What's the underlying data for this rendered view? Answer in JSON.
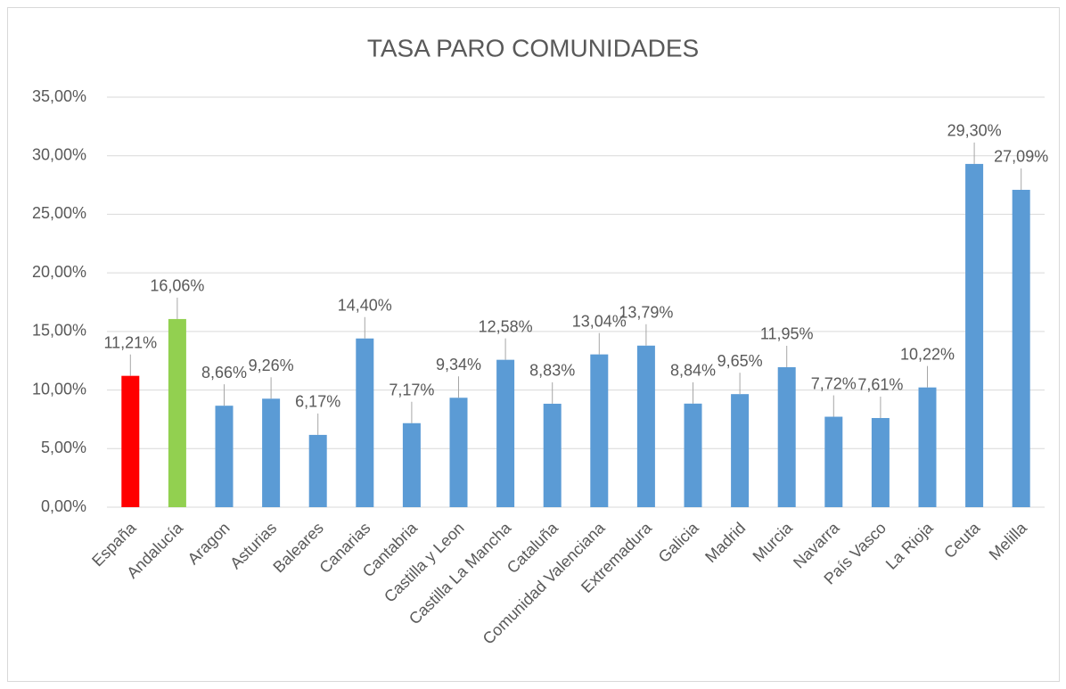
{
  "chart_data": {
    "type": "bar",
    "title": "TASA PARO COMUNIDADES",
    "categories": [
      "España",
      "Andalucía",
      "Aragon",
      "Asturias",
      "Baleares",
      "Canarias",
      "Cantabria",
      "Castilla y Leon",
      "Castilla La Mancha",
      "Cataluña",
      "Comunidad Valenciana",
      "Extremadura",
      "Galicia",
      "Madrid",
      "Murcia",
      "Navarra",
      "País Vasco",
      "La Rioja",
      "Ceuta",
      "Melilla"
    ],
    "values": [
      11.21,
      16.06,
      8.66,
      9.26,
      6.17,
      14.4,
      7.17,
      9.34,
      12.58,
      8.83,
      13.04,
      13.79,
      8.84,
      9.65,
      11.95,
      7.72,
      7.61,
      10.22,
      29.3,
      27.09
    ],
    "value_labels": [
      "11,21%",
      "16,06%",
      "8,66%",
      "9,26%",
      "6,17%",
      "14,40%",
      "7,17%",
      "9,34%",
      "12,58%",
      "8,83%",
      "13,04%",
      "13,79%",
      "8,84%",
      "9,65%",
      "11,95%",
      "7,72%",
      "7,61%",
      "10,22%",
      "29,30%",
      "27,09%"
    ],
    "colors": [
      "#ff0000",
      "#92d050",
      "#5b9bd5",
      "#5b9bd5",
      "#5b9bd5",
      "#5b9bd5",
      "#5b9bd5",
      "#5b9bd5",
      "#5b9bd5",
      "#5b9bd5",
      "#5b9bd5",
      "#5b9bd5",
      "#5b9bd5",
      "#5b9bd5",
      "#5b9bd5",
      "#5b9bd5",
      "#5b9bd5",
      "#5b9bd5",
      "#5b9bd5",
      "#5b9bd5"
    ],
    "ylim": [
      0,
      35
    ],
    "yticks": [
      {
        "value": 0,
        "label": "0,00%"
      },
      {
        "value": 5,
        "label": "5,00%"
      },
      {
        "value": 10,
        "label": "10,00%"
      },
      {
        "value": 15,
        "label": "15,00%"
      },
      {
        "value": 20,
        "label": "20,00%"
      },
      {
        "value": 25,
        "label": "25,00%"
      },
      {
        "value": 30,
        "label": "30,00%"
      },
      {
        "value": 35,
        "label": "35,00%"
      }
    ],
    "grid": true
  }
}
